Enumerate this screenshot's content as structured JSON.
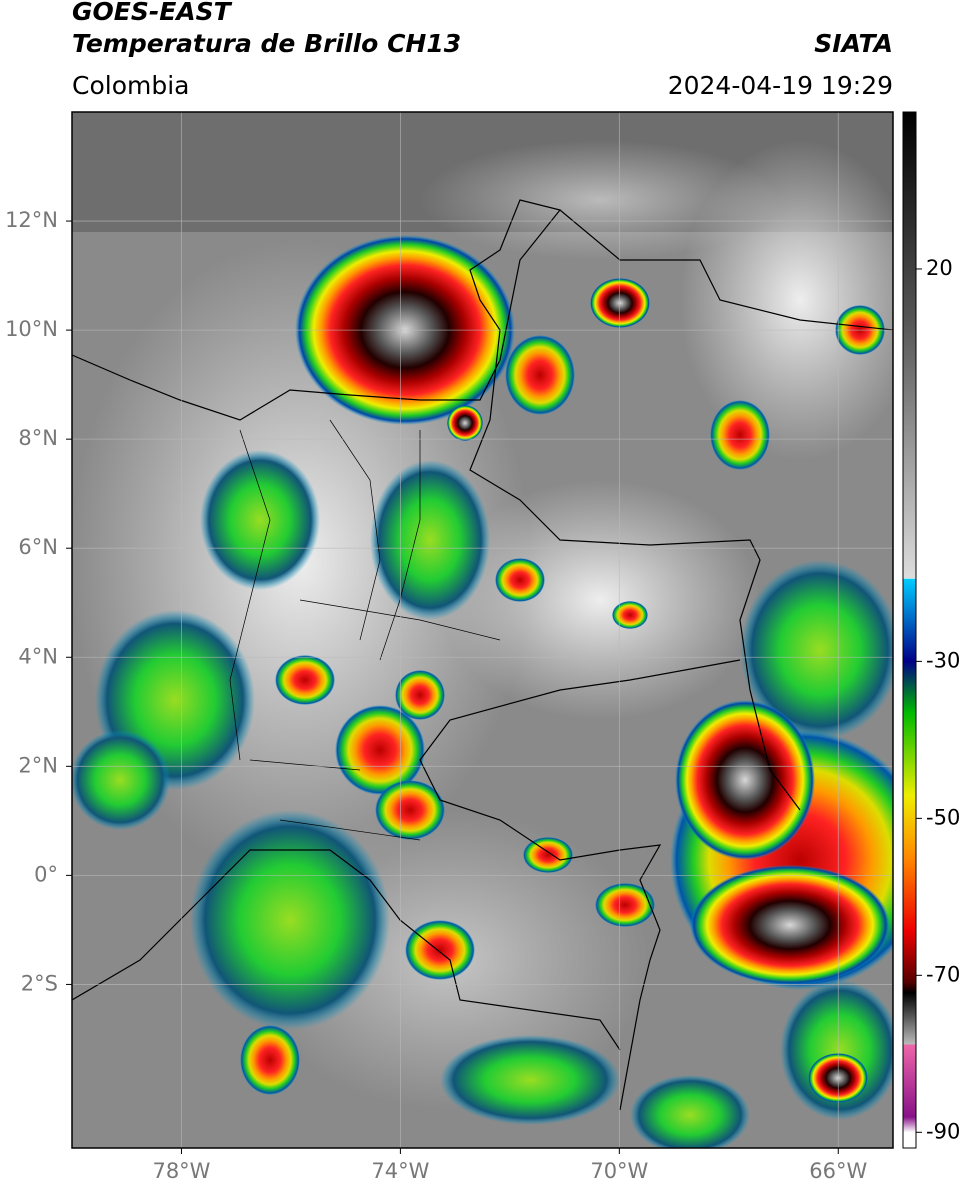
{
  "header": {
    "title": "GOES-EAST",
    "subtitle": "Temperatura de Brillo CH13",
    "source": "SIATA",
    "region": "Colombia",
    "datetime": "2024-04-19 19:29"
  },
  "map": {
    "xlim": [
      -80,
      -65
    ],
    "ylim": [
      -5,
      14
    ],
    "xticks": [
      {
        "value": -78,
        "label": "78°W"
      },
      {
        "value": -74,
        "label": "74°W"
      },
      {
        "value": -70,
        "label": "70°W"
      },
      {
        "value": -66,
        "label": "66°W"
      }
    ],
    "yticks": [
      {
        "value": 12,
        "label": "12°N"
      },
      {
        "value": 10,
        "label": "10°N"
      },
      {
        "value": 8,
        "label": "8°N"
      },
      {
        "value": 6,
        "label": "6°N"
      },
      {
        "value": 4,
        "label": "4°N"
      },
      {
        "value": 2,
        "label": "2°N"
      },
      {
        "value": 0,
        "label": "0°"
      },
      {
        "value": -2,
        "label": "2°S"
      }
    ],
    "grid": true
  },
  "colorbar": {
    "lim": [
      -92,
      40
    ],
    "ticks": [
      20,
      -30,
      -50,
      -70,
      -90
    ]
  }
}
